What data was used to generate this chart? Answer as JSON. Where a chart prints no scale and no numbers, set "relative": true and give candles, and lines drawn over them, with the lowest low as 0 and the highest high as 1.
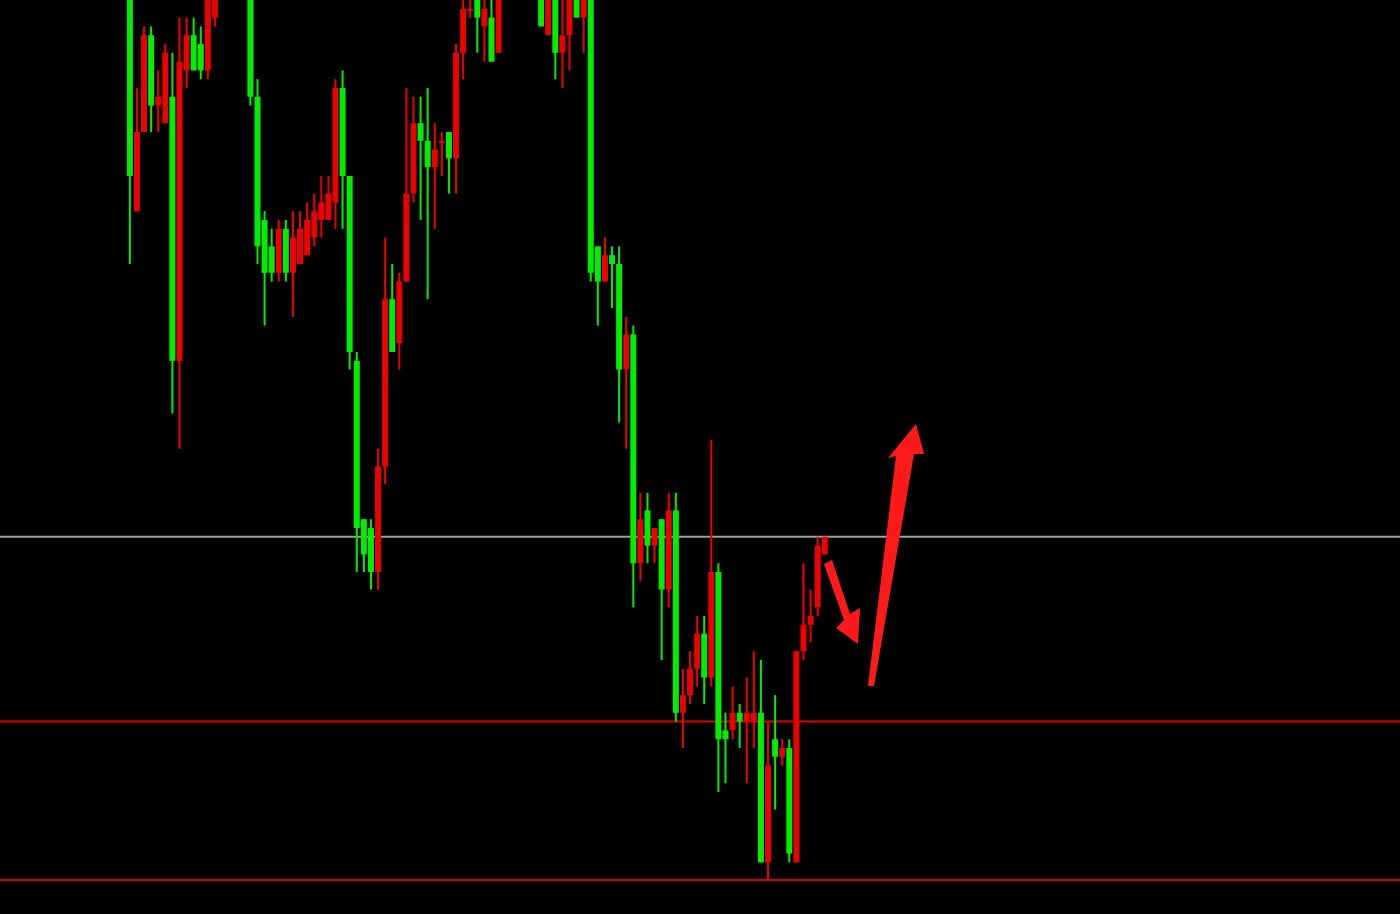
{
  "chart_data": {
    "type": "candlestick",
    "relative": true,
    "categories": [
      null,
      null,
      null,
      null,
      null,
      null,
      null,
      null,
      null,
      null,
      null,
      null,
      null,
      null,
      null,
      null,
      null,
      null,
      null,
      null,
      null,
      null,
      null,
      null,
      null,
      null,
      null,
      null,
      null,
      null,
      null,
      null,
      null,
      null,
      null,
      null,
      null,
      null,
      null,
      null,
      null,
      null,
      null,
      null,
      null,
      null,
      null,
      null,
      null,
      null,
      null,
      null,
      null,
      null,
      null,
      null,
      null,
      null,
      null,
      null,
      null,
      null,
      null,
      null,
      null,
      null,
      null,
      null,
      null,
      null,
      null,
      null,
      null,
      null,
      null,
      null,
      null,
      null,
      null,
      null,
      null,
      null,
      null,
      null,
      null,
      null,
      null,
      null,
      null,
      null,
      null,
      null,
      null,
      null,
      null,
      null,
      null,
      null,
      null
    ],
    "ohlc": [
      [
        1,
        1,
        0.7,
        0.8
      ],
      [
        0.76,
        0.9,
        0.76,
        0.85
      ],
      [
        0.85,
        0.97,
        0.85,
        0.96
      ],
      [
        0.96,
        0.97,
        0.85,
        0.88
      ],
      [
        0.88,
        0.92,
        0.85,
        0.89
      ],
      [
        0.86,
        0.95,
        0.86,
        0.94
      ],
      [
        0.89,
        0.94,
        0.53,
        0.59
      ],
      [
        0.59,
        0.98,
        0.49,
        0.93
      ],
      [
        0.92,
        0.98,
        0.9,
        0.96
      ],
      [
        0.96,
        0.98,
        0.92,
        0.92
      ],
      [
        0.95,
        0.97,
        0.91,
        0.92
      ],
      [
        0.92,
        1,
        0.91,
        1
      ],
      [
        0.98,
        1,
        0.97,
        1
      ],
      null,
      null,
      null,
      null,
      [
        1,
        1,
        0.88,
        0.89
      ],
      [
        0.89,
        0.91,
        0.7,
        0.72
      ],
      [
        0.75,
        0.76,
        0.63,
        0.69
      ],
      [
        0.72,
        0.74,
        0.68,
        0.69
      ],
      [
        0.69,
        0.75,
        0.68,
        0.74
      ],
      [
        0.74,
        0.75,
        0.68,
        0.69
      ],
      [
        0.69,
        0.76,
        0.64,
        0.73
      ],
      [
        0.7,
        0.76,
        0.7,
        0.74
      ],
      [
        0.71,
        0.77,
        0.71,
        0.75
      ],
      [
        0.73,
        0.78,
        0.72,
        0.76
      ],
      [
        0.75,
        0.8,
        0.73,
        0.77
      ],
      [
        0.75,
        0.8,
        0.75,
        0.78
      ],
      [
        0.77,
        0.91,
        0.74,
        0.9
      ],
      [
        0.9,
        0.92,
        0.74,
        0.8
      ],
      [
        0.8,
        0.8,
        0.58,
        0.6
      ],
      [
        0.59,
        0.6,
        0.35,
        0.4
      ],
      [
        0.41,
        0.41,
        0.35,
        0.37
      ],
      [
        0.4,
        0.41,
        0.33,
        0.35
      ],
      [
        0.35,
        0.49,
        0.33,
        0.47
      ],
      [
        0.47,
        0.73,
        0.45,
        0.66
      ],
      [
        0.66,
        0.7,
        0.6,
        0.6
      ],
      [
        0.61,
        0.69,
        0.58,
        0.68
      ],
      [
        0.68,
        0.9,
        0.68,
        0.78
      ],
      [
        0.78,
        0.89,
        0.77,
        0.86
      ],
      [
        0.86,
        0.89,
        0.75,
        0.84
      ],
      [
        0.84,
        0.9,
        0.66,
        0.81
      ],
      [
        0.81,
        0.86,
        0.74,
        0.83
      ],
      [
        0.84,
        0.85,
        0.8,
        0.84
      ],
      [
        0.85,
        0.85,
        0.78,
        0.82
      ],
      [
        0.82,
        0.95,
        0.78,
        0.94
      ],
      [
        0.94,
        1,
        0.91,
        0.99
      ],
      [
        0.99,
        1,
        0.98,
        0.99
      ],
      [
        1,
        1,
        0.94,
        0.98
      ],
      [
        0.97,
        1,
        0.93,
        0.99
      ],
      [
        0.98,
        1,
        0.93,
        0.93
      ],
      [
        0.94,
        1,
        0.94,
        1
      ],
      null,
      null,
      null,
      null,
      null,
      [
        1,
        1,
        0.97,
        0.97
      ],
      [
        0.96,
        1,
        0.96,
        1
      ],
      [
        1,
        1,
        0.91,
        0.94
      ],
      [
        0.94,
        1,
        0.9,
        0.96
      ],
      [
        0.96,
        1,
        0.92,
        1
      ],
      [
        1,
        1,
        0.98,
        0.98
      ],
      [
        0.98,
        1,
        0.94,
        1
      ],
      [
        1,
        1,
        0.68,
        0.69
      ],
      [
        0.72,
        0.72,
        0.63,
        0.68
      ],
      [
        0.68,
        0.73,
        0.68,
        0.71
      ],
      [
        0.71,
        0.72,
        0.65,
        0.7
      ],
      [
        0.7,
        0.72,
        0.52,
        0.58
      ],
      [
        0.58,
        0.64,
        0.49,
        0.62
      ],
      [
        0.62,
        0.63,
        0.31,
        0.36
      ],
      [
        0.36,
        0.44,
        0.34,
        0.41
      ],
      [
        0.42,
        0.44,
        0.36,
        0.38
      ],
      [
        0.38,
        0.4,
        0.36,
        0.4
      ],
      [
        0.41,
        0.41,
        0.25,
        0.33
      ],
      [
        0.33,
        0.44,
        0.31,
        0.42
      ],
      [
        0.42,
        0.44,
        0.18,
        0.19
      ],
      [
        0.19,
        0.24,
        0.15,
        0.21
      ],
      [
        0.21,
        0.26,
        0.2,
        0.24
      ],
      [
        0.24,
        0.3,
        0.22,
        0.28
      ],
      [
        0.28,
        0.3,
        0.2,
        0.23
      ],
      [
        0.23,
        0.5,
        0.22,
        0.35
      ],
      [
        0.35,
        0.36,
        0.1,
        0.16
      ],
      [
        0.17,
        0.19,
        0.11,
        0.16
      ],
      [
        0.17,
        0.22,
        0.16,
        0.19
      ],
      [
        0.19,
        0.2,
        0.15,
        0.18
      ],
      [
        0.18,
        0.23,
        0.11,
        0.19
      ],
      [
        0.18,
        0.26,
        0.15,
        0.19
      ],
      [
        0.19,
        0.25,
        0.02,
        0.02
      ],
      [
        0.02,
        0.18,
        0,
        0.13
      ],
      [
        0.16,
        0.21,
        0.08,
        0.14
      ],
      [
        0.14,
        0.16,
        0.13,
        0.15
      ],
      [
        0.15,
        0.16,
        0.02,
        0.03
      ],
      [
        0.02,
        0.26,
        0.02,
        0.26
      ],
      [
        0.26,
        0.36,
        0.25,
        0.29
      ],
      [
        0.29,
        0.33,
        0.27,
        0.3
      ],
      [
        0.31,
        0.39,
        0.3,
        0.38
      ],
      [
        0.37,
        0.39,
        0.37,
        0.39
      ]
    ],
    "colors": [
      "#00ee00",
      "#ee0000",
      "#ee0000",
      "#00ee00",
      "#ee0000",
      "#ee0000",
      "#00ee00",
      "#ee0000",
      "#ee0000",
      "#00ee00",
      "#00ee00",
      "#ee0000",
      "#ee0000",
      null,
      null,
      null,
      null,
      "#00ee00",
      "#00ee00",
      "#00ee00",
      "#00ee00",
      "#ee0000",
      "#00ee00",
      "#ee0000",
      "#ee0000",
      "#ee0000",
      "#ee0000",
      "#ee0000",
      "#ee0000",
      "#ee0000",
      "#00ee00",
      "#00ee00",
      "#00ee00",
      "#00ee00",
      "#00ee00",
      "#ee0000",
      "#ee0000",
      "#00ee00",
      "#ee0000",
      "#ee0000",
      "#ee0000",
      "#00ee00",
      "#00ee00",
      "#ee0000",
      "#ee0000",
      "#00ee00",
      "#ee0000",
      "#ee0000",
      "#ee0000",
      "#00ee00",
      "#ee0000",
      "#00ee00",
      "#ee0000",
      null,
      null,
      null,
      null,
      null,
      "#00ee00",
      "#ee0000",
      "#00ee00",
      "#ee0000",
      "#ee0000",
      "#00ee00",
      "#ee0000",
      "#00ee00",
      "#00ee00",
      "#ee0000",
      "#00ee00",
      "#00ee00",
      "#ee0000",
      "#00ee00",
      "#ee0000",
      "#00ee00",
      "#ee0000",
      "#00ee00",
      "#ee0000",
      "#00ee00",
      "#ee0000",
      "#ee0000",
      "#ee0000",
      "#00ee00",
      "#ee0000",
      "#00ee00",
      "#00ee00",
      "#ee0000",
      "#00ee00",
      "#ee0000",
      "#ee0000",
      "#00ee00",
      "#ee0000",
      "#00ee00",
      "#ee0000",
      "#00ee00",
      "#ee0000",
      "#ee0000",
      "#ee0000",
      "#ee0000",
      "#ee0000"
    ],
    "ref_lines": [
      {
        "axis": "y",
        "value": 0.39,
        "color": "#a0a0a0"
      },
      {
        "axis": "y",
        "value": 0.18,
        "color": "#dd0000"
      },
      {
        "axis": "y",
        "value": 0,
        "color": "#dd0000"
      }
    ]
  }
}
